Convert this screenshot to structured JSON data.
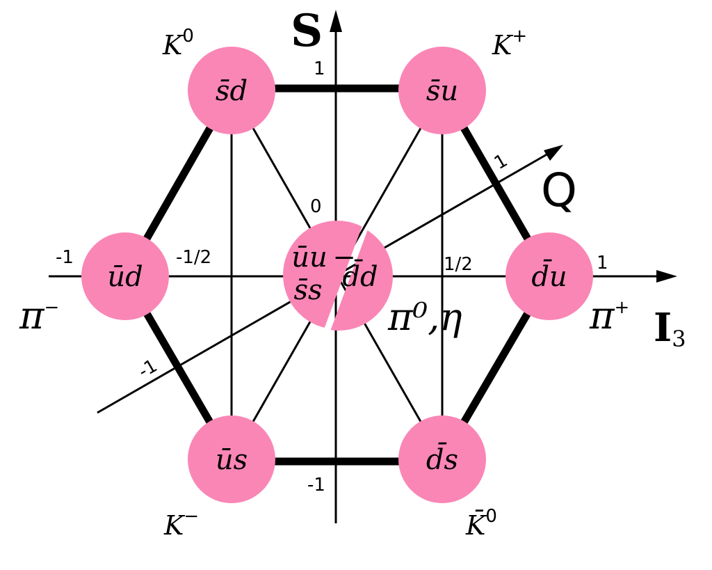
{
  "axes": {
    "strangeness": {
      "label": "S",
      "ticks": [
        "1",
        "0",
        "-1"
      ]
    },
    "isospin": {
      "label": "I",
      "subscript": "3",
      "ticks": [
        "-1",
        "-1/2",
        "1/2",
        "1"
      ]
    },
    "charge": {
      "label": "Q",
      "ticks": [
        "1",
        "-1"
      ]
    }
  },
  "mesons": {
    "k0": {
      "quarks": "s̄d",
      "name": "K",
      "sup": "0"
    },
    "kplus": {
      "quarks": "s̄u",
      "name": "K",
      "sup": "+"
    },
    "piminus": {
      "quarks": "ūd",
      "name": "π",
      "sup": "−"
    },
    "piplus": {
      "quarks": "d̄u",
      "name": "π",
      "sup": "+"
    },
    "kminus": {
      "quarks": "ūs",
      "name": "K",
      "sup": "−"
    },
    "k0bar": {
      "quarks": "d̄s",
      "name": "K̄",
      "sup": "0"
    },
    "center": {
      "quarks_top": "ūu",
      "quarks_mid": "−",
      "quarks_bottom": "s̄s",
      "quarks_right": "d̄d",
      "name": "π⁰,η"
    }
  }
}
